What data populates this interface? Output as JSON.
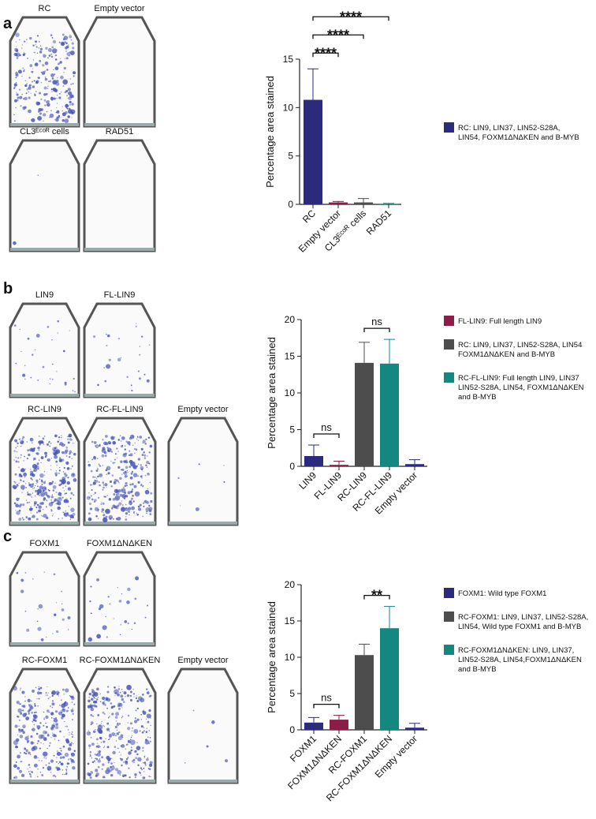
{
  "chart_data": [
    {
      "type": "bar",
      "panel": "a",
      "plates": [
        "RC",
        "Empty vector",
        "CL3ᴱᶜᵒᴿ cells",
        "RAD51"
      ],
      "ylabel": "Percentage area stained",
      "categories": [
        "RC",
        "Empty vector",
        "CL3ᴱᶜᵒᴿ cells",
        "RAD51"
      ],
      "values": [
        10.8,
        0.2,
        0.2,
        0.05
      ],
      "errors": [
        3.2,
        0.1,
        0.4,
        0.05
      ],
      "colors": [
        "#2b2a7c",
        "#8c1c48",
        "#4d4d4d",
        "#14877f"
      ],
      "ylim": [
        0,
        15
      ],
      "yticks": [
        0,
        5,
        10,
        15
      ],
      "annotations": [
        {
          "from": 0,
          "to": 1,
          "label": "****"
        },
        {
          "from": 0,
          "to": 2,
          "label": "****"
        },
        {
          "from": 0,
          "to": 3,
          "label": "****"
        }
      ],
      "legend": [
        {
          "color": "#2b2a7c",
          "text": [
            "RC: LIN9, LIN37, LIN52-S28A,",
            "LIN54, FOXM1ΔNΔKEN and B-MYB"
          ]
        }
      ]
    },
    {
      "type": "bar",
      "panel": "b",
      "plates": [
        "LIN9",
        "FL-LIN9",
        "RC-LIN9",
        "RC-FL-LIN9",
        "Empty vector"
      ],
      "ylabel": "Percentage area stained",
      "categories": [
        "LIN9",
        "FL-LIN9",
        "RC-LIN9",
        "RC-FL-LIN9",
        "Empty vector"
      ],
      "values": [
        1.4,
        0.2,
        14.1,
        14.0,
        0.3
      ],
      "errors": [
        1.5,
        0.5,
        2.8,
        3.3,
        0.6
      ],
      "colors": [
        "#2b2a7c",
        "#8c1c48",
        "#4d4d4d",
        "#14877f",
        "#2b2a7c"
      ],
      "ylim": [
        0,
        20
      ],
      "yticks": [
        0,
        5,
        10,
        15,
        20
      ],
      "annotations": [
        {
          "from": 0,
          "to": 1,
          "label": "ns"
        },
        {
          "from": 2,
          "to": 3,
          "label": "ns"
        }
      ],
      "legend": [
        {
          "color": "#8c1c48",
          "text": [
            "FL-LIN9: Full length LIN9"
          ]
        },
        {
          "color": "#4d4d4d",
          "text": [
            "RC: LIN9, LIN37, LIN52-S28A, LIN54",
            "FOXM1ΔNΔKEN and B-MYB"
          ]
        },
        {
          "color": "#14877f",
          "text": [
            "RC-FL-LIN9: Full length LIN9, LIN37",
            "LIN52-S28A, LIN54, FOXM1ΔNΔKEN",
            "and B-MYB"
          ]
        }
      ]
    },
    {
      "type": "bar",
      "panel": "c",
      "plates": [
        "FOXM1",
        "FOXM1ΔNΔKEN",
        "RC-FOXM1",
        "RC-FOXM1ΔNΔKEN",
        "Empty vector"
      ],
      "ylabel": "Percentage area stained",
      "categories": [
        "FOXM1",
        "FOXM1ΔNΔKEN",
        "RC-FOXM1",
        "RC-FOXM1ΔNΔKEN",
        "Empty vector"
      ],
      "values": [
        1.0,
        1.4,
        10.3,
        14.0,
        0.3
      ],
      "errors": [
        0.7,
        0.6,
        1.5,
        3.0,
        0.6
      ],
      "colors": [
        "#2b2a7c",
        "#8c1c48",
        "#4d4d4d",
        "#14877f",
        "#2b2a7c"
      ],
      "ylim": [
        0,
        20
      ],
      "yticks": [
        0,
        5,
        10,
        15,
        20
      ],
      "annotations": [
        {
          "from": 0,
          "to": 1,
          "label": "ns"
        },
        {
          "from": 2,
          "to": 3,
          "label": "**"
        }
      ],
      "legend": [
        {
          "color": "#2b2a7c",
          "text": [
            "FOXM1: Wild type FOXM1"
          ]
        },
        {
          "color": "#4d4d4d",
          "text": [
            "RC-FOXM1: LIN9, LIN37, LIN52-S28A,",
            "LIN54, Wild type FOXM1 and B-MYB"
          ]
        },
        {
          "color": "#14877f",
          "text": [
            "RC-FOXM1ΔNΔKEN: LIN9, LIN37,",
            "LIN52-S28A, LIN54,FOXM1ΔNΔKEN",
            "and B-MYB"
          ]
        }
      ]
    }
  ]
}
